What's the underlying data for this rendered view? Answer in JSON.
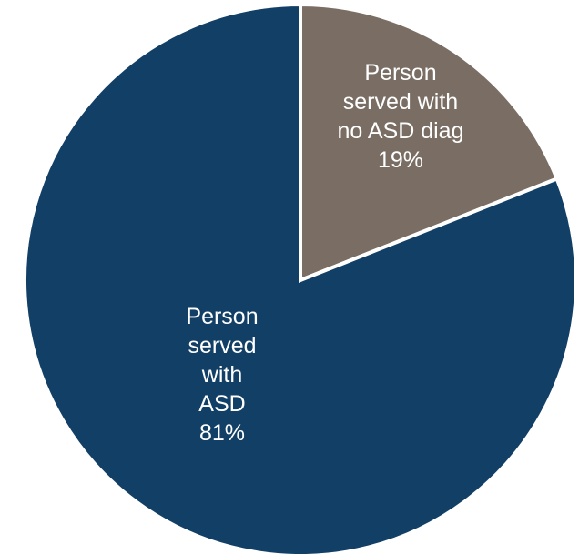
{
  "chart_data": {
    "type": "pie",
    "title": "",
    "slices": [
      {
        "label_lines": [
          "Person",
          "served with",
          "no ASD diag"
        ],
        "value": 19,
        "value_label": "19%",
        "color": "#7A6E64",
        "text_color": "#ffffff"
      },
      {
        "label_lines": [
          "Person",
          "served",
          "with",
          "ASD"
        ],
        "value": 81,
        "value_label": "81%",
        "color": "#123F66",
        "text_color": "#ffffff"
      }
    ],
    "start_angle": "12 o'clock",
    "direction": "clockwise",
    "separator_color": "#ffffff",
    "legend": "none"
  }
}
